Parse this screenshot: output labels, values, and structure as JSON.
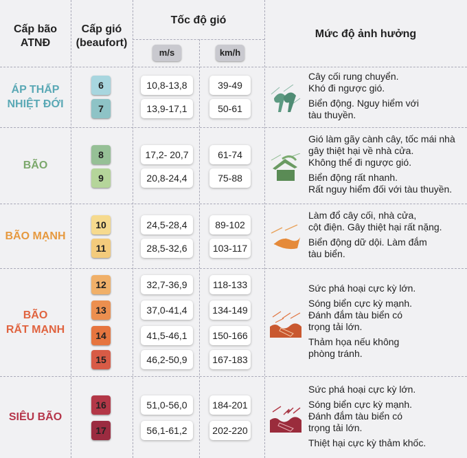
{
  "header": {
    "storm_level": "Cấp bão\nATNĐ",
    "wind_level": "Cấp gió\n(beaufort)",
    "wind_speed": "Tốc độ gió",
    "unit_ms": "m/s",
    "unit_kmh": "km/h",
    "impact": "Mức độ ảnh hưởng"
  },
  "groups": [
    {
      "name": "ÁP THẤP\nNHIỆT ĐỚI",
      "color": "#5aa8b5",
      "icon": "wind-trees-icon",
      "levels": [
        {
          "level": "6",
          "ms": "10,8-13,8",
          "kmh": "39-49",
          "badge_color": "#a8d6df"
        },
        {
          "level": "7",
          "ms": "13,9-17,1",
          "kmh": "50-61",
          "badge_color": "#8ec3c6"
        }
      ],
      "impact": [
        "Cây cối rung chuyển.\nKhó đi ngược gió.",
        "Biển động. Nguy hiểm với\ntàu thuyền."
      ]
    },
    {
      "name": "BÃO",
      "color": "#7ca86c",
      "icon": "broken-roof-icon",
      "levels": [
        {
          "level": "8",
          "ms": "17,2- 20,7",
          "kmh": "61-74",
          "badge_color": "#96c096"
        },
        {
          "level": "9",
          "ms": "20,8-24,4",
          "kmh": "75-88",
          "badge_color": "#b5d59a"
        }
      ],
      "impact": [
        "Gió làm gãy cành cây, tốc mái nhà\ngây thiệt hại về nhà cửa.\nKhông thể đi ngược gió.",
        "Biển động rất nhanh.\nRất nguy hiểm đối với tàu thuyền."
      ]
    },
    {
      "name": "BÃO MẠNH",
      "color": "#e6993f",
      "icon": "strong-wind-icon",
      "levels": [
        {
          "level": "10",
          "ms": "24,5-28,4",
          "kmh": "89-102",
          "badge_color": "#f6da8e"
        },
        {
          "level": "11",
          "ms": "28,5-32,6",
          "kmh": "103-117",
          "badge_color": "#f3cb7c"
        }
      ],
      "impact": [
        "Làm đổ cây cối, nhà cửa,\ncột điện. Gây thiệt hại rất nặng.",
        "Biển động dữ dội. Làm đắm\ntàu biển."
      ]
    },
    {
      "name": "BÃO\nRẤT MẠNH",
      "color": "#e0633f",
      "icon": "sinking-ship-icon",
      "levels": [
        {
          "level": "12",
          "ms": "32,7-36,9",
          "kmh": "118-133",
          "badge_color": "#f0b069"
        },
        {
          "level": "13",
          "ms": "37,0-41,4",
          "kmh": "134-149",
          "badge_color": "#ec8f4f"
        },
        {
          "level": "14",
          "ms": "41,5-46,1",
          "kmh": "150-166",
          "badge_color": "#e6753f"
        },
        {
          "level": "15",
          "ms": "46,2-50,9",
          "kmh": "167-183",
          "badge_color": "#d85b46"
        }
      ],
      "impact": [
        "Sức phá hoại cực kỳ lớn.",
        "Sóng biển cực kỳ mạnh.\nĐánh đắm tàu biển có\ntrọng tải lớn.",
        "Thảm họa nếu không\nphòng tránh."
      ]
    },
    {
      "name": "SIÊU BÃO",
      "color": "#b5354a",
      "icon": "sinking-ship-lightning-icon",
      "levels": [
        {
          "level": "16",
          "ms": "51,0-56,0",
          "kmh": "184-201",
          "badge_color": "#b33747"
        },
        {
          "level": "17",
          "ms": "56,1-61,2",
          "kmh": "202-220",
          "badge_color": "#9b2b40"
        }
      ],
      "impact": [
        "Sức phá hoại cực kỳ lớn.",
        "Sóng biển cực kỳ mạnh.\nĐánh đắm tàu biển có\ntrọng tải lớn.",
        "Thiệt hại cực kỳ thảm khốc."
      ]
    }
  ]
}
